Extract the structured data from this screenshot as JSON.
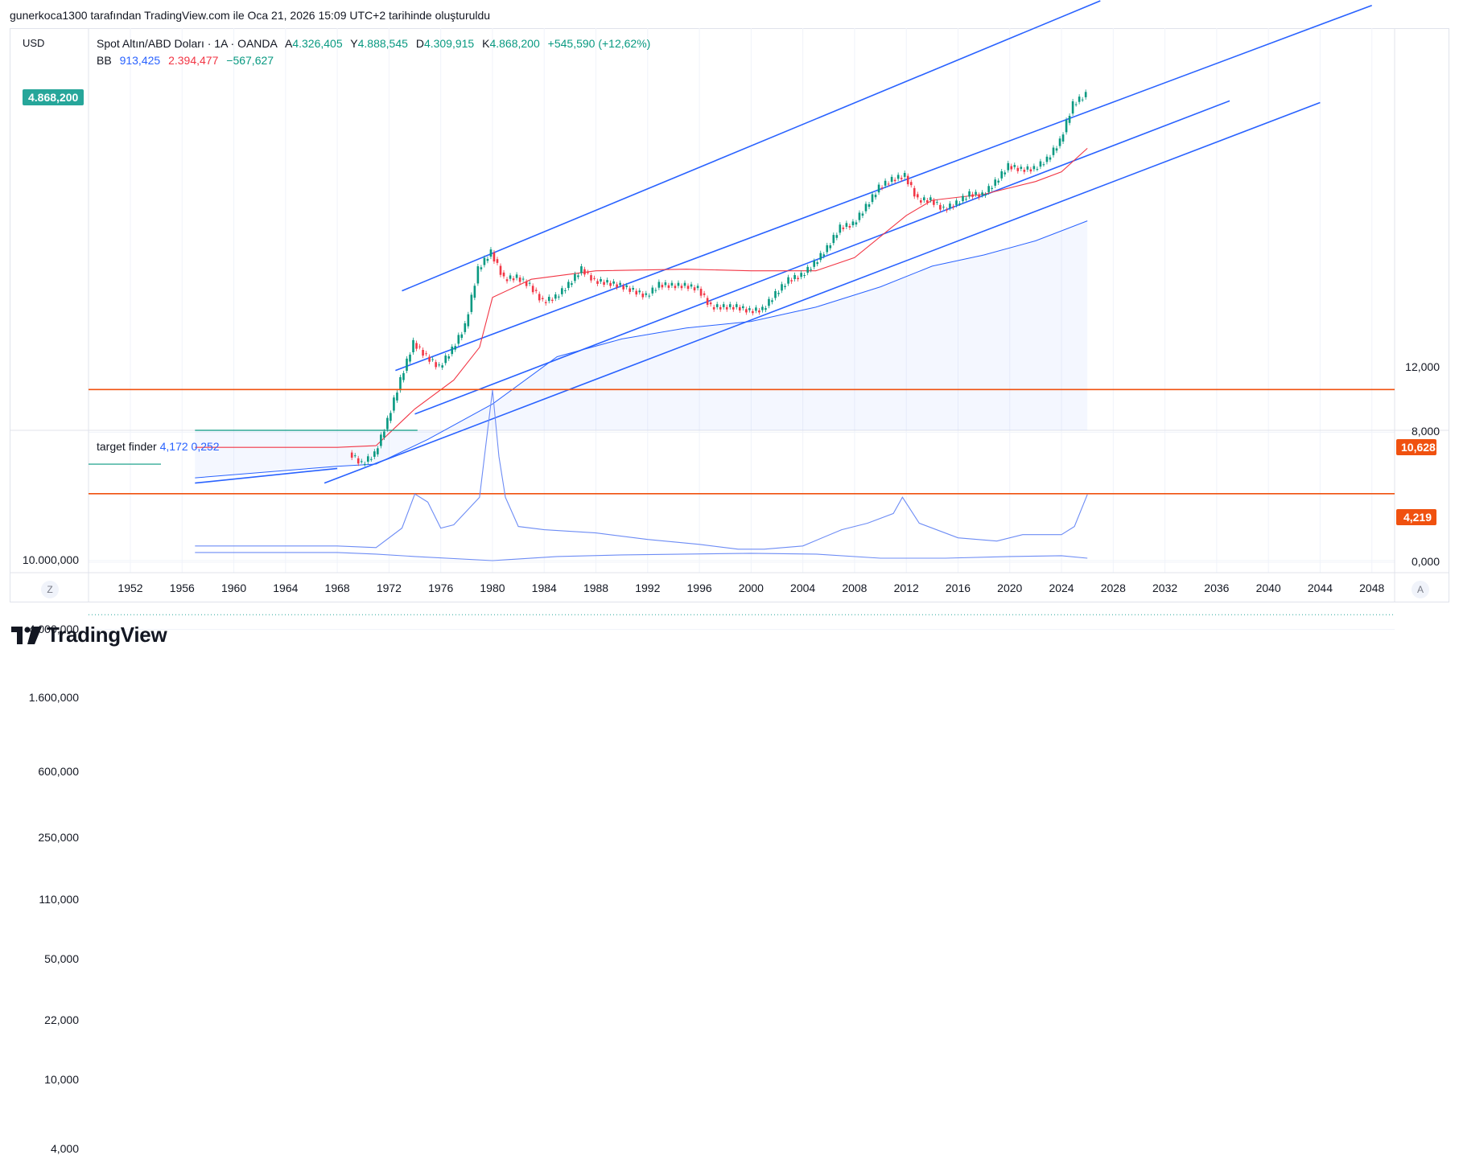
{
  "attribution": "gunerkoca1300 tarafından TradingView.com ile Oca 21, 2026 15:09 UTC+2 tarihinde oluşturuldu",
  "currency": "USD",
  "legend": {
    "symbol": "Spot Altın/ABD Doları · 1A · OANDA",
    "open_label": "A",
    "open": "4.326,405",
    "high_label": "Y",
    "high": "4.888,545",
    "low_label": "D",
    "low": "4.309,915",
    "close_label": "K",
    "close": "4.868,200",
    "change": "+545,590 (+12,62%)",
    "bb_label": "BB",
    "bb_upper": "913,425",
    "bb_mid": "2.394,477",
    "bb_lower": "−567,627"
  },
  "last_price": "4.868,200",
  "lower_legend": {
    "name": "target finder",
    "v1": "4,172",
    "v2": "0,252"
  },
  "level_tags": [
    "10,628",
    "4,219"
  ],
  "footer": {
    "left_button": "Z",
    "right_button": "A",
    "brand": "TradingView"
  },
  "colors": {
    "price_line": "#26a69a",
    "bb_upper": "#2962ff",
    "bb_mid": "#f23645",
    "bb_lower": "#089981",
    "level": "#f0510f"
  },
  "chart_data": [
    {
      "type": "candlestick",
      "title": "Spot Altın/ABD Doları · 1A · OANDA",
      "scale": "log",
      "yticks": [
        "10.000,000",
        "4.000,000",
        "1.600,000",
        "600,000",
        "250,000",
        "110,000",
        "50,000",
        "22,000",
        "10,000",
        "4,000"
      ],
      "xticks": [
        "1952",
        "1956",
        "1960",
        "1964",
        "1968",
        "1972",
        "1976",
        "1980",
        "1984",
        "1988",
        "1992",
        "1996",
        "2000",
        "2004",
        "2008",
        "2012",
        "2016",
        "2020",
        "2024",
        "2028",
        "2032",
        "2036",
        "2040",
        "2044",
        "2048"
      ],
      "price_series": {
        "x": [
          1969,
          1970,
          1971,
          1972,
          1973,
          1974,
          1975,
          1976,
          1977,
          1978,
          1979,
          1980,
          1981,
          1982,
          1983,
          1984,
          1985,
          1986,
          1987,
          1988,
          1989,
          1990,
          1991,
          1992,
          1993,
          1994,
          1995,
          1996,
          1997,
          1998,
          1999,
          2000,
          2001,
          2002,
          2003,
          2004,
          2005,
          2006,
          2007,
          2008,
          2009,
          2010,
          2011,
          2012,
          2013,
          2014,
          2015,
          2016,
          2017,
          2018,
          2019,
          2020,
          2021,
          2022,
          2023,
          2024,
          2025,
          2026
        ],
        "y": [
          42,
          36,
          41,
          64,
          110,
          180,
          150,
          130,
          165,
          225,
          480,
          600,
          420,
          430,
          385,
          310,
          330,
          390,
          480,
          410,
          400,
          385,
          360,
          335,
          390,
          385,
          385,
          370,
          290,
          290,
          290,
          275,
          280,
          345,
          415,
          440,
          515,
          635,
          835,
          870,
          1100,
          1420,
          1575,
          1660,
          1200,
          1200,
          1060,
          1150,
          1300,
          1280,
          1520,
          1890,
          1800,
          1820,
          2060,
          2620,
          4300,
          4868
        ]
      },
      "bb_mid": {
        "x": [
          1957,
          1968,
          1971,
          1974,
          1977,
          1979,
          1980,
          1983,
          1988,
          1995,
          2000,
          2005,
          2008,
          2012,
          2014,
          2018,
          2022,
          2024,
          2026
        ],
        "y": [
          45,
          45,
          46,
          75,
          110,
          170,
          330,
          420,
          470,
          480,
          470,
          470,
          560,
          980,
          1200,
          1300,
          1540,
          1750,
          2394
        ]
      },
      "bb_upper": {
        "x": [
          1957,
          1968,
          1971,
          1975,
          1980,
          1985,
          1990,
          1995,
          2000,
          2005,
          2010,
          2014,
          2018,
          2022,
          2026
        ],
        "y": [
          30,
          35,
          36,
          50,
          80,
          150,
          190,
          220,
          240,
          290,
          380,
          500,
          580,
          700,
          913
        ]
      },
      "bb_lower": {
        "x": [
          1957,
          1968,
          1971,
          1972.5,
          1973.2,
          1974.2
        ],
        "y": [
          17,
          27,
          30,
          25,
          10,
          2.5
        ]
      },
      "trend_lines": [
        {
          "x": [
            1973,
            2027
          ],
          "y": [
            360,
            17000
          ]
        },
        {
          "x": [
            1972.5,
            2048
          ],
          "y": [
            125,
            16000
          ]
        },
        {
          "x": [
            1974,
            2037
          ],
          "y": [
            70,
            4500
          ]
        },
        {
          "x": [
            1967,
            2044
          ],
          "y": [
            28,
            4400
          ]
        },
        {
          "x": [
            1957,
            1968
          ],
          "y": [
            28,
            34
          ]
        }
      ]
    },
    {
      "type": "line",
      "title": "target finder",
      "yticks": [
        "12,000",
        "8,000",
        "0,000"
      ],
      "ylim": [
        0,
        12
      ],
      "levels": [
        10.628,
        4.219
      ],
      "series": [
        {
          "name": "target finder 1",
          "x": [
            1957,
            1968,
            1971,
            1973,
            1974,
            1975,
            1976,
            1977,
            1979,
            1980,
            1980.5,
            1981,
            1982,
            1984,
            1988,
            1992,
            1996,
            1999,
            2001,
            2004,
            2007,
            2009,
            2011,
            2011.7,
            2013,
            2016,
            2019,
            2021,
            2024,
            2025,
            2026
          ],
          "y": [
            1.0,
            1.0,
            0.9,
            2.1,
            4.2,
            3.7,
            2.1,
            2.3,
            4.0,
            10.6,
            6.5,
            4.0,
            2.2,
            2.0,
            1.8,
            1.4,
            1.1,
            0.8,
            0.8,
            1.0,
            2.0,
            2.4,
            3.0,
            4.0,
            2.4,
            1.5,
            1.3,
            1.7,
            1.7,
            2.2,
            4.17
          ]
        },
        {
          "name": "target finder 2",
          "x": [
            1957,
            1968,
            1971,
            1974,
            1980,
            1985,
            1990,
            2000,
            2005,
            2010,
            2015,
            2020,
            2024,
            2026
          ],
          "y": [
            0.6,
            0.6,
            0.5,
            0.35,
            0.1,
            0.35,
            0.45,
            0.55,
            0.5,
            0.25,
            0.25,
            0.35,
            0.4,
            0.25
          ]
        }
      ]
    }
  ]
}
